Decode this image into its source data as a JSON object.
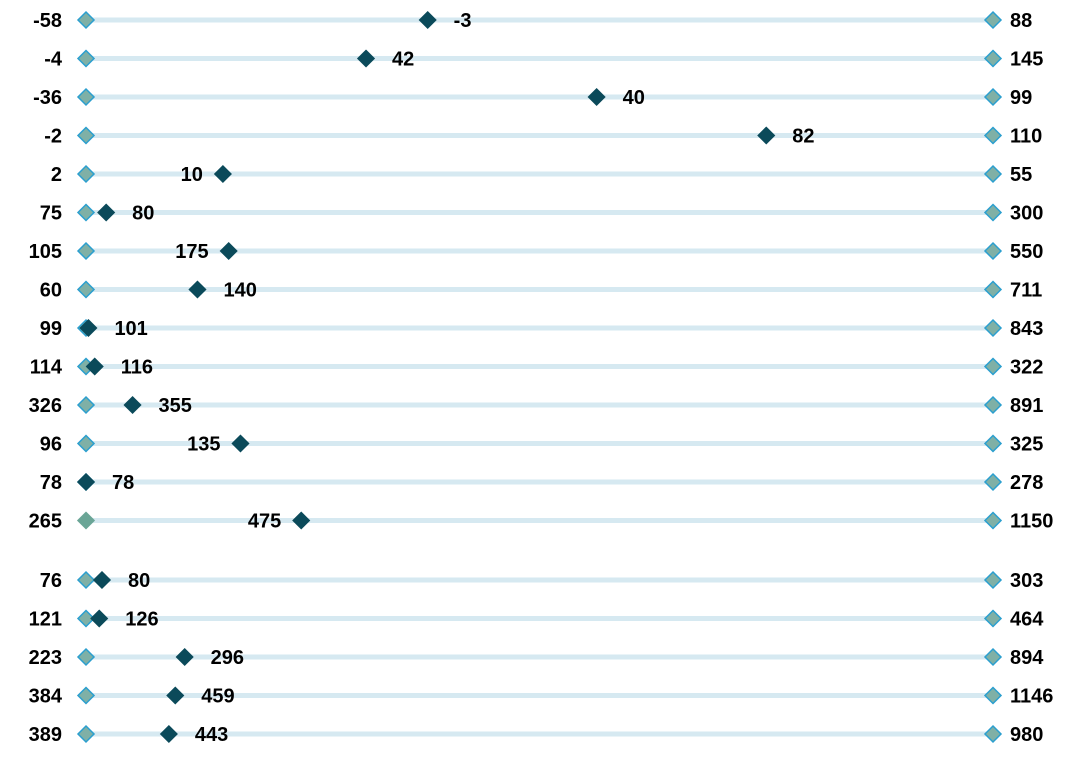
{
  "chart_data": {
    "type": "dot-range",
    "description_note": "",
    "colors": {
      "track": "#d6e9f1",
      "endpoint_fill": "#7fb0a6",
      "endpoint_stroke": "#2b9fcf",
      "value_marker": "#0b4a5a",
      "solid_endpoint": "#6aa596"
    },
    "groups": [
      {
        "rows": [
          {
            "low": -58,
            "value": -3,
            "high": 88,
            "scale_max": 88
          },
          {
            "low": -4,
            "value": 42,
            "high": 145,
            "scale_max": 145
          },
          {
            "low": -36,
            "value": 40,
            "high": 99,
            "scale_max": 99
          },
          {
            "low": -2,
            "value": 82,
            "high": 110,
            "scale_max": 110
          },
          {
            "low": 2,
            "value": 10,
            "high": 55,
            "scale_max": 55
          },
          {
            "low": 75,
            "value": 80,
            "high": 300,
            "scale_max": 300
          },
          {
            "low": 105,
            "value": 175,
            "high": 550,
            "scale_max": 550
          },
          {
            "low": 60,
            "value": 140,
            "high": 711,
            "scale_max": 711
          },
          {
            "low": 99,
            "value": 101,
            "high": 843,
            "scale_max": 843
          },
          {
            "low": 114,
            "value": 116,
            "high": 322,
            "scale_max": 322
          },
          {
            "low": 326,
            "value": 355,
            "high": 891,
            "scale_max": 891
          },
          {
            "low": 96,
            "value": 135,
            "high": 325,
            "scale_max": 325
          },
          {
            "low": 78,
            "value": 78,
            "high": 278,
            "scale_max": 278
          },
          {
            "low": 265,
            "value": 475,
            "high": 1150,
            "scale_max": 1150
          }
        ]
      },
      {
        "rows": [
          {
            "low": 76,
            "value": 80,
            "high": 303
          },
          {
            "low": 121,
            "value": 126,
            "high": 464
          },
          {
            "low": 223,
            "value": 296,
            "high": 894
          },
          {
            "low": 384,
            "value": 459,
            "high": 1146
          },
          {
            "low": 389,
            "value": 443,
            "high": 980
          }
        ]
      }
    ]
  }
}
